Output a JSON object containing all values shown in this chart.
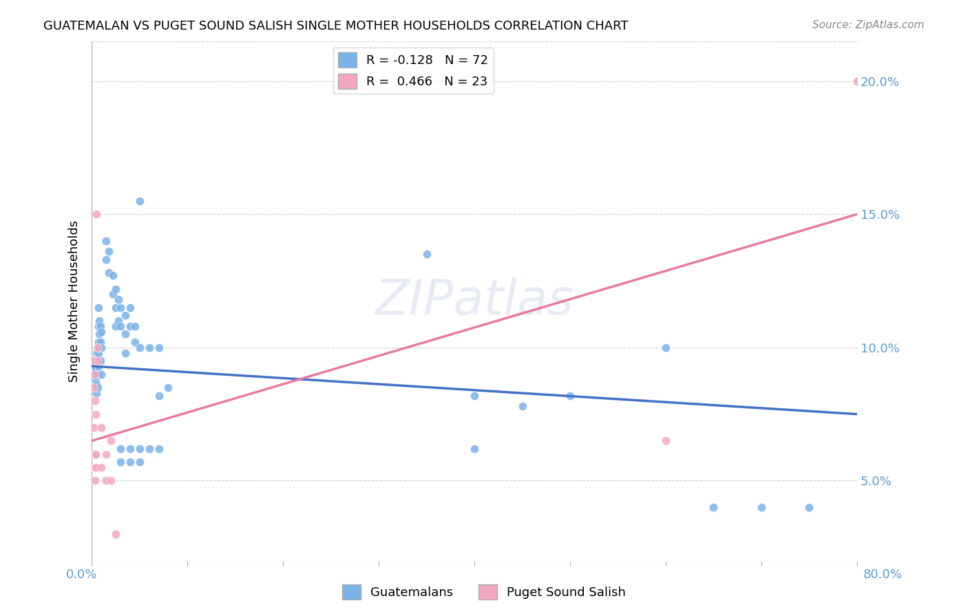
{
  "title": "GUATEMALAN VS PUGET SOUND SALISH SINGLE MOTHER HOUSEHOLDS CORRELATION CHART",
  "source": "Source: ZipAtlas.com",
  "ylabel": "Single Mother Households",
  "ytick_values": [
    0.05,
    0.1,
    0.15,
    0.2
  ],
  "xlim": [
    0.0,
    0.8
  ],
  "ylim": [
    0.02,
    0.215
  ],
  "blue_scatter": [
    [
      0.002,
      0.095
    ],
    [
      0.002,
      0.09
    ],
    [
      0.003,
      0.093
    ],
    [
      0.003,
      0.088
    ],
    [
      0.004,
      0.092
    ],
    [
      0.004,
      0.087
    ],
    [
      0.005,
      0.098
    ],
    [
      0.005,
      0.086
    ],
    [
      0.005,
      0.083
    ],
    [
      0.006,
      0.096
    ],
    [
      0.006,
      0.09
    ],
    [
      0.006,
      0.085
    ],
    [
      0.007,
      0.115
    ],
    [
      0.007,
      0.108
    ],
    [
      0.007,
      0.102
    ],
    [
      0.007,
      0.098
    ],
    [
      0.007,
      0.093
    ],
    [
      0.008,
      0.11
    ],
    [
      0.008,
      0.105
    ],
    [
      0.008,
      0.1
    ],
    [
      0.008,
      0.095
    ],
    [
      0.009,
      0.108
    ],
    [
      0.009,
      0.102
    ],
    [
      0.009,
      0.095
    ],
    [
      0.01,
      0.106
    ],
    [
      0.01,
      0.1
    ],
    [
      0.01,
      0.09
    ],
    [
      0.015,
      0.14
    ],
    [
      0.015,
      0.133
    ],
    [
      0.018,
      0.136
    ],
    [
      0.018,
      0.128
    ],
    [
      0.022,
      0.127
    ],
    [
      0.022,
      0.12
    ],
    [
      0.025,
      0.122
    ],
    [
      0.025,
      0.115
    ],
    [
      0.025,
      0.108
    ],
    [
      0.028,
      0.118
    ],
    [
      0.028,
      0.11
    ],
    [
      0.03,
      0.115
    ],
    [
      0.03,
      0.108
    ],
    [
      0.03,
      0.062
    ],
    [
      0.03,
      0.057
    ],
    [
      0.035,
      0.112
    ],
    [
      0.035,
      0.105
    ],
    [
      0.035,
      0.098
    ],
    [
      0.04,
      0.115
    ],
    [
      0.04,
      0.108
    ],
    [
      0.04,
      0.062
    ],
    [
      0.04,
      0.057
    ],
    [
      0.045,
      0.108
    ],
    [
      0.045,
      0.102
    ],
    [
      0.05,
      0.155
    ],
    [
      0.05,
      0.1
    ],
    [
      0.05,
      0.062
    ],
    [
      0.05,
      0.057
    ],
    [
      0.06,
      0.1
    ],
    [
      0.06,
      0.062
    ],
    [
      0.07,
      0.1
    ],
    [
      0.07,
      0.082
    ],
    [
      0.07,
      0.062
    ],
    [
      0.08,
      0.085
    ],
    [
      0.35,
      0.135
    ],
    [
      0.4,
      0.082
    ],
    [
      0.4,
      0.062
    ],
    [
      0.45,
      0.078
    ],
    [
      0.5,
      0.082
    ],
    [
      0.6,
      0.1
    ],
    [
      0.65,
      0.04
    ],
    [
      0.7,
      0.04
    ],
    [
      0.75,
      0.04
    ]
  ],
  "pink_scatter": [
    [
      0.002,
      0.095
    ],
    [
      0.002,
      0.085
    ],
    [
      0.002,
      0.07
    ],
    [
      0.003,
      0.09
    ],
    [
      0.003,
      0.08
    ],
    [
      0.003,
      0.06
    ],
    [
      0.003,
      0.055
    ],
    [
      0.003,
      0.05
    ],
    [
      0.004,
      0.075
    ],
    [
      0.004,
      0.06
    ],
    [
      0.004,
      0.055
    ],
    [
      0.005,
      0.15
    ],
    [
      0.006,
      0.1
    ],
    [
      0.006,
      0.095
    ],
    [
      0.01,
      0.07
    ],
    [
      0.01,
      0.055
    ],
    [
      0.015,
      0.06
    ],
    [
      0.015,
      0.05
    ],
    [
      0.02,
      0.065
    ],
    [
      0.02,
      0.05
    ],
    [
      0.025,
      0.03
    ],
    [
      0.6,
      0.065
    ],
    [
      0.8,
      0.2
    ]
  ],
  "blue_line_x": [
    0.0,
    0.8
  ],
  "blue_line_y": [
    0.093,
    0.075
  ],
  "pink_line_x": [
    0.0,
    0.8
  ],
  "pink_line_y": [
    0.065,
    0.15
  ],
  "blue_color": "#7ab3e8",
  "pink_color": "#f4a8c0",
  "blue_line_color": "#4472c4",
  "pink_line_color": "#e87aa0",
  "watermark": "ZIPatlas",
  "watermark_color": "#d0d8e8"
}
